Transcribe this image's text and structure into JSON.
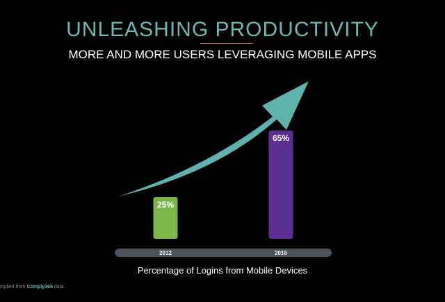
{
  "slide": {
    "title": "UNLEASHING PRODUCTIVITY",
    "subtitle": "MORE AND MORE USERS LEVERAGING MOBILE APPS",
    "footnote_prefix": "mplied from",
    "footnote_brand": "Comply365",
    "footnote_suffix": "data."
  },
  "chart_data": {
    "type": "bar",
    "title": "UNLEASHING PRODUCTIVITY",
    "subtitle": "MORE AND MORE USERS LEVERAGING MOBILE APPS",
    "xlabel": "Percentage of Logins from Mobile Devices",
    "ylabel": "",
    "categories": [
      "2012",
      "2016"
    ],
    "values": [
      25,
      65
    ],
    "value_labels": [
      "25%",
      "65%"
    ],
    "unit": "%",
    "ylim": [
      0,
      100
    ],
    "grid": false,
    "legend": "none",
    "annotation": "upward trend arrow"
  },
  "colors": {
    "background": "#000000",
    "title": "#6fb7b4",
    "title_rule": "#c4774a",
    "bars": [
      "#7ab648",
      "#5b2f91"
    ],
    "arrow": "#5fb2ae",
    "axis_bar": "#4a525c",
    "text": "#ffffff"
  }
}
